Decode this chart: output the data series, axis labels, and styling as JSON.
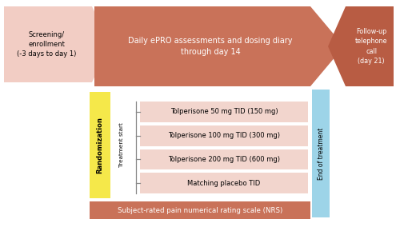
{
  "bg_color": "#ffffff",
  "screening_text": "Screening/\nenrollment\n(-3 days to day 1)",
  "screening_color": "#f2cdc4",
  "arrow_color": "#c97259",
  "arrow_text": "Daily ePRO assessments and dosing diary\nthrough day 14",
  "arrow_text_color": "#ffffff",
  "followup_text": "Follow-up\ntelephone\ncall\n(day 21)",
  "followup_color": "#b85c43",
  "followup_text_color": "#ffffff",
  "blue_bar_color": "#9dd4e8",
  "eot_text": "End of treatment",
  "randomization_color": "#f5e84a",
  "randomization_text": "Randomization",
  "treatment_start_text": "Treatment start",
  "treatment_box_color": "#f2d5cd",
  "treatment_boxes": [
    "Tolperisone 50 mg TID (150 mg)",
    "Tolperisone 100 mg TID (300 mg)",
    "Tolperisone 200 mg TID (600 mg)",
    "Matching placebo TID"
  ],
  "nrs_color": "#c97259",
  "nrs_text": "Subject-rated pain numerical rating scale (NRS)",
  "nrs_text_color": "#ffffff"
}
